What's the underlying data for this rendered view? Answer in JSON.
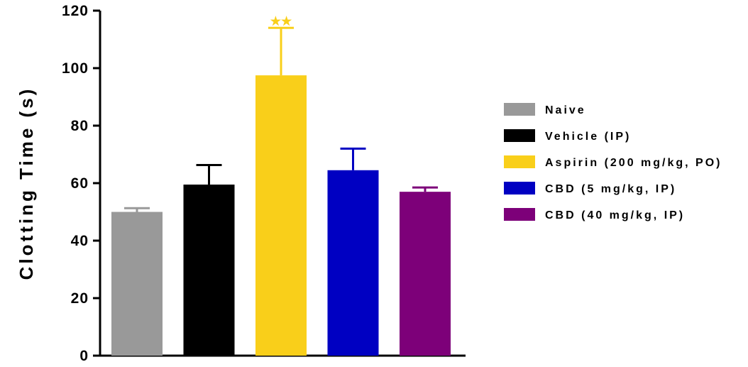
{
  "chart_data": {
    "type": "bar",
    "title": "",
    "xlabel": "",
    "ylabel": "Clotting Time (s)",
    "ylim": [
      0,
      120
    ],
    "yticks": [
      "0",
      "20",
      "40",
      "60",
      "80",
      "100",
      "120"
    ],
    "grid": false,
    "legend_position": "right",
    "categories": [
      "Naive",
      "Vehicle (IP)",
      "Aspirin (200 mg/kg, PO)",
      "CBD (5 mg/kg, IP)",
      "CBD (40 mg/kg, IP)"
    ],
    "values": [
      50,
      59.5,
      97.5,
      64.5,
      57
    ],
    "errors": [
      1.3,
      6.8,
      16.5,
      7.5,
      1.5
    ],
    "colors": [
      "#999999",
      "#000000",
      "#F9CF1A",
      "#0000C2",
      "#7D0079"
    ],
    "annotations": [
      {
        "category": "Aspirin (200 mg/kg, PO)",
        "text": "★★",
        "color": "#F9CF1A"
      }
    ]
  }
}
